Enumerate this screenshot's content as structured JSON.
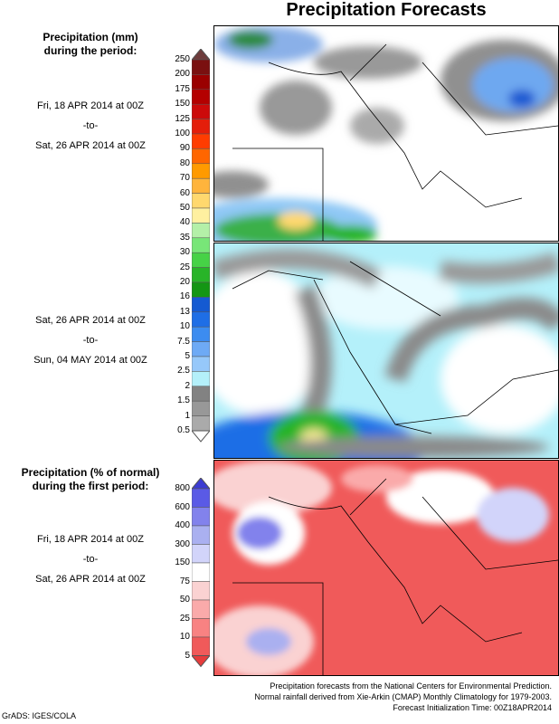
{
  "title": "Precipitation Forecasts",
  "section1": {
    "heading": "Precipitation (mm)\nduring the period:",
    "period1": {
      "start": "Fri, 18 APR 2014 at 00Z",
      "sep": "-to-",
      "end": "Sat, 26 APR 2014 at 00Z"
    },
    "period2": {
      "start": "Sat, 26 APR 2014 at 00Z",
      "sep": "-to-",
      "end": "Sun, 04 MAY 2014 at 00Z"
    },
    "colorbar": {
      "labels": [
        "250",
        "200",
        "175",
        "150",
        "125",
        "100",
        "90",
        "80",
        "70",
        "60",
        "50",
        "40",
        "35",
        "30",
        "25",
        "20",
        "16",
        "13",
        "10",
        "7.5",
        "5",
        "2.5",
        "2",
        "1.5",
        "1",
        "0.5"
      ],
      "colors": [
        "#7a1010",
        "#9a0000",
        "#b40000",
        "#cc0a0a",
        "#e41e0a",
        "#ff3c00",
        "#ff6600",
        "#ff9a00",
        "#ffb43c",
        "#ffd86e",
        "#fff0a0",
        "#b4f0a8",
        "#78e678",
        "#46d246",
        "#28b428",
        "#149614",
        "#145ad2",
        "#1e6ee6",
        "#3c8cf0",
        "#6eaaf5",
        "#96c8fa",
        "#b4f0fa",
        "#828282",
        "#989898",
        "#aaaaaa"
      ],
      "top_arrow": "#6e3c3c",
      "bottom_arrow": "#ffffff"
    }
  },
  "section2": {
    "heading": "Precipitation (% of normal)\nduring the first period:",
    "period": {
      "start": "Fri, 18 APR 2014 at 00Z",
      "sep": "-to-",
      "end": "Sat, 26 APR 2014 at 00Z"
    },
    "colorbar": {
      "labels": [
        "800",
        "600",
        "400",
        "300",
        "150",
        "75",
        "50",
        "25",
        "10",
        "5"
      ],
      "colors": [
        "#5a5ae6",
        "#8282ec",
        "#aab0f0",
        "#d2d4fa",
        "#ffffff",
        "#fad2d2",
        "#faaaaa",
        "#f88282",
        "#f05a5a"
      ],
      "top_arrow": "#3c3cd2",
      "bottom_arrow": "#e63c3c"
    }
  },
  "footer": {
    "line1": "Precipitation forecasts from the National Centers for Environmental Prediction.",
    "line2": "Normal rainfall derived from Xie-Arkin (CMAP) Monthly Climatology for 1979-2003.",
    "line3": "Forecast Initialization Time: 00Z18APR2014"
  },
  "credit": "GrADS: IGES/COLA"
}
